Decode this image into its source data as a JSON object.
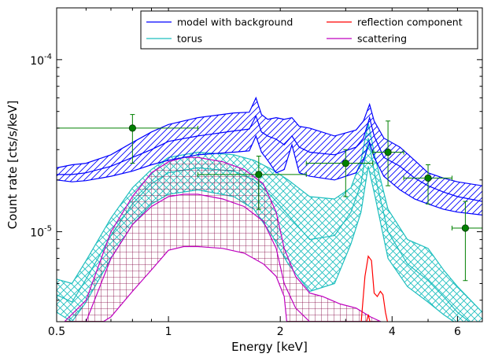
{
  "chart_data": {
    "type": "line",
    "xlabel": "Energy [keV]",
    "ylabel": "Count rate [cts/s/keV]",
    "xscale": "log",
    "yscale": "log",
    "xlim": [
      0.5,
      7.0
    ],
    "ylim": [
      3e-06,
      0.0002
    ],
    "xticks": [
      {
        "value": 0.5,
        "label": "0.5"
      },
      {
        "value": 1,
        "label": "1"
      },
      {
        "value": 2,
        "label": "2"
      },
      {
        "value": 4,
        "label": "4"
      },
      {
        "value": 6,
        "label": "6"
      }
    ],
    "yticks": [
      {
        "value": 1e-05,
        "base": "10",
        "exp": "-5"
      },
      {
        "value": 0.0001,
        "base": "10",
        "exp": "-4"
      }
    ],
    "legend": {
      "placement": "top-right",
      "columns": 2,
      "entries": [
        {
          "label": "model with background",
          "color": "#0000ff"
        },
        {
          "label": "reflection component",
          "color": "#ff0000"
        },
        {
          "label": "torus",
          "color": "#1fbfbf"
        },
        {
          "label": "scattering",
          "color": "#bf00bf"
        }
      ]
    },
    "colors": {
      "model": "#0000ff",
      "torus": "#1fbfbf",
      "reflection": "#ff0000",
      "scattering": "#bf00bf",
      "hatch_dark": "#800040",
      "data": "#008000"
    },
    "series": [
      {
        "name": "model with background",
        "color": "#0000ff",
        "hatch": "diagonal",
        "upper": [
          [
            0.5,
            2.35e-05
          ],
          [
            0.55,
            2.45e-05
          ],
          [
            0.6,
            2.5e-05
          ],
          [
            0.7,
            2.8e-05
          ],
          [
            0.8,
            3.3e-05
          ],
          [
            0.9,
            3.8e-05
          ],
          [
            1.0,
            4.2e-05
          ],
          [
            1.2,
            4.6e-05
          ],
          [
            1.5,
            4.9e-05
          ],
          [
            1.65,
            4.95e-05
          ],
          [
            1.72,
            6e-05
          ],
          [
            1.78,
            4.8e-05
          ],
          [
            1.85,
            4.5e-05
          ],
          [
            1.95,
            4.6e-05
          ],
          [
            2.05,
            4.5e-05
          ],
          [
            2.15,
            4.6e-05
          ],
          [
            2.25,
            4.1e-05
          ],
          [
            2.4,
            4e-05
          ],
          [
            2.8,
            3.6e-05
          ],
          [
            3.2,
            3.9e-05
          ],
          [
            3.35,
            4.4e-05
          ],
          [
            3.48,
            5.5e-05
          ],
          [
            3.58,
            4.4e-05
          ],
          [
            3.8,
            3.5e-05
          ],
          [
            4.2,
            3.1e-05
          ],
          [
            4.6,
            2.6e-05
          ],
          [
            5.0,
            2.2e-05
          ],
          [
            5.5,
            2.05e-05
          ],
          [
            6.0,
            1.95e-05
          ],
          [
            7.0,
            1.85e-05
          ]
        ],
        "middle": [
          [
            0.5,
            2.15e-05
          ],
          [
            0.55,
            2.15e-05
          ],
          [
            0.6,
            2.2e-05
          ],
          [
            0.7,
            2.4e-05
          ],
          [
            0.8,
            2.7e-05
          ],
          [
            0.9,
            3e-05
          ],
          [
            1.0,
            3.35e-05
          ],
          [
            1.2,
            3.6e-05
          ],
          [
            1.5,
            3.85e-05
          ],
          [
            1.65,
            3.95e-05
          ],
          [
            1.72,
            4.7e-05
          ],
          [
            1.78,
            3.8e-05
          ],
          [
            1.85,
            3.6e-05
          ],
          [
            1.95,
            3.45e-05
          ],
          [
            2.05,
            3.2e-05
          ],
          [
            2.15,
            3.6e-05
          ],
          [
            2.25,
            3.1e-05
          ],
          [
            2.4,
            2.9e-05
          ],
          [
            2.8,
            2.8e-05
          ],
          [
            3.2,
            3.1e-05
          ],
          [
            3.35,
            3.5e-05
          ],
          [
            3.48,
            4.6e-05
          ],
          [
            3.58,
            3.6e-05
          ],
          [
            3.8,
            2.7e-05
          ],
          [
            4.2,
            2.4e-05
          ],
          [
            4.6,
            2.05e-05
          ],
          [
            5.0,
            1.85e-05
          ],
          [
            5.5,
            1.7e-05
          ],
          [
            6.0,
            1.6e-05
          ],
          [
            7.0,
            1.5e-05
          ]
        ],
        "lower": [
          [
            0.5,
            2e-05
          ],
          [
            0.55,
            1.95e-05
          ],
          [
            0.6,
            1.98e-05
          ],
          [
            0.7,
            2.1e-05
          ],
          [
            0.8,
            2.25e-05
          ],
          [
            0.9,
            2.45e-05
          ],
          [
            1.0,
            2.6e-05
          ],
          [
            1.2,
            2.8e-05
          ],
          [
            1.5,
            2.9e-05
          ],
          [
            1.65,
            2.95e-05
          ],
          [
            1.72,
            3.6e-05
          ],
          [
            1.78,
            2.9e-05
          ],
          [
            1.85,
            2.6e-05
          ],
          [
            1.95,
            2.2e-05
          ],
          [
            2.05,
            2.3e-05
          ],
          [
            2.15,
            3.2e-05
          ],
          [
            2.25,
            2.2e-05
          ],
          [
            2.4,
            2.1e-05
          ],
          [
            2.8,
            2e-05
          ],
          [
            3.2,
            2.2e-05
          ],
          [
            3.35,
            2.6e-05
          ],
          [
            3.48,
            3.3e-05
          ],
          [
            3.58,
            2.7e-05
          ],
          [
            3.8,
            2.1e-05
          ],
          [
            4.2,
            1.75e-05
          ],
          [
            4.6,
            1.55e-05
          ],
          [
            5.0,
            1.45e-05
          ],
          [
            5.5,
            1.35e-05
          ],
          [
            6.0,
            1.3e-05
          ],
          [
            7.0,
            1.25e-05
          ]
        ]
      },
      {
        "name": "torus",
        "color": "#1fbfbf",
        "hatch": "crosshatch",
        "upper": [
          [
            0.5,
            5.3e-06
          ],
          [
            0.55,
            5e-06
          ],
          [
            0.6,
            6.8e-06
          ],
          [
            0.7,
            1.2e-05
          ],
          [
            0.8,
            1.8e-05
          ],
          [
            0.9,
            2.3e-05
          ],
          [
            1.0,
            2.7e-05
          ],
          [
            1.2,
            2.9e-05
          ],
          [
            1.5,
            2.8e-05
          ],
          [
            1.7,
            2.6e-05
          ],
          [
            1.9,
            2.3e-05
          ],
          [
            2.1,
            2e-05
          ],
          [
            2.4,
            1.6e-05
          ],
          [
            2.8,
            1.55e-05
          ],
          [
            3.1,
            1.8e-05
          ],
          [
            3.3,
            2.6e-05
          ],
          [
            3.45,
            4.3e-05
          ],
          [
            3.6,
            2.7e-05
          ],
          [
            3.9,
            1.35e-05
          ],
          [
            4.4,
            9e-06
          ],
          [
            5.0,
            8e-06
          ],
          [
            5.5,
            6e-06
          ],
          [
            6.0,
            4.8e-06
          ],
          [
            7.0,
            3.4e-06
          ]
        ],
        "middle": [
          [
            0.5,
            4.3e-06
          ],
          [
            0.55,
            3.9e-06
          ],
          [
            0.6,
            5.3e-06
          ],
          [
            0.7,
            9.5e-06
          ],
          [
            0.8,
            1.45e-05
          ],
          [
            0.9,
            1.9e-05
          ],
          [
            1.0,
            2.2e-05
          ],
          [
            1.2,
            2.35e-05
          ],
          [
            1.5,
            2.25e-05
          ],
          [
            1.7,
            2e-05
          ],
          [
            1.9,
            1.6e-05
          ],
          [
            2.1,
            1.25e-05
          ],
          [
            2.4,
            9e-06
          ],
          [
            2.8,
            9.5e-06
          ],
          [
            3.1,
            1.3e-05
          ],
          [
            3.3,
            1.9e-05
          ],
          [
            3.45,
            3.5e-05
          ],
          [
            3.6,
            2.1e-05
          ],
          [
            3.9,
            1e-05
          ],
          [
            4.4,
            6.5e-06
          ],
          [
            5.0,
            5.2e-06
          ],
          [
            5.5,
            4.2e-06
          ],
          [
            6.0,
            3.4e-06
          ],
          [
            7.0,
            2.6e-06
          ]
        ],
        "lower": [
          [
            0.5,
            3.4e-06
          ],
          [
            0.55,
            3e-06
          ],
          [
            0.6,
            3.9e-06
          ],
          [
            0.7,
            7e-06
          ],
          [
            0.8,
            1.1e-05
          ],
          [
            0.9,
            1.45e-05
          ],
          [
            1.0,
            1.65e-05
          ],
          [
            1.2,
            1.75e-05
          ],
          [
            1.5,
            1.6e-05
          ],
          [
            1.7,
            1.35e-05
          ],
          [
            1.9,
            9.5e-06
          ],
          [
            2.1,
            6.5e-06
          ],
          [
            2.4,
            4.5e-06
          ],
          [
            2.8,
            5e-06
          ],
          [
            3.1,
            8.5e-06
          ],
          [
            3.3,
            1.3e-05
          ],
          [
            3.45,
            2.4e-05
          ],
          [
            3.6,
            1.6e-05
          ],
          [
            3.9,
            7e-06
          ],
          [
            4.4,
            4.8e-06
          ],
          [
            5.0,
            3.9e-06
          ],
          [
            5.5,
            3.3e-06
          ],
          [
            6.0,
            2.9e-06
          ],
          [
            7.0,
            2.2e-06
          ]
        ]
      },
      {
        "name": "scattering",
        "color": "#bf00bf",
        "hatch": "grid",
        "upper": [
          [
            0.5,
            2.7e-06
          ],
          [
            0.6,
            4e-06
          ],
          [
            0.7,
            1e-05
          ],
          [
            0.8,
            1.6e-05
          ],
          [
            0.9,
            2.2e-05
          ],
          [
            1.0,
            2.55e-05
          ],
          [
            1.1,
            2.7e-05
          ],
          [
            1.2,
            2.7e-05
          ],
          [
            1.4,
            2.55e-05
          ],
          [
            1.6,
            2.3e-05
          ],
          [
            1.8,
            1.9e-05
          ],
          [
            1.95,
            1.3e-05
          ],
          [
            2.05,
            8e-06
          ],
          [
            2.2,
            5.5e-06
          ],
          [
            2.4,
            4.4e-06
          ],
          [
            2.6,
            4.2e-06
          ],
          [
            2.9,
            3.8e-06
          ],
          [
            3.2,
            3.6e-06
          ],
          [
            3.5,
            3.2e-06
          ],
          [
            4.0,
            2.8e-06
          ]
        ],
        "middle": [
          [
            0.5,
            2.5e-06
          ],
          [
            0.6,
            3e-06
          ],
          [
            0.7,
            7e-06
          ],
          [
            0.8,
            1.1e-05
          ],
          [
            0.9,
            1.4e-05
          ],
          [
            1.0,
            1.6e-05
          ],
          [
            1.1,
            1.65e-05
          ],
          [
            1.2,
            1.65e-05
          ],
          [
            1.4,
            1.55e-05
          ],
          [
            1.6,
            1.4e-05
          ],
          [
            1.8,
            1.15e-05
          ],
          [
            1.95,
            8e-06
          ],
          [
            2.05,
            5e-06
          ],
          [
            2.2,
            3.6e-06
          ],
          [
            2.4,
            3e-06
          ],
          [
            2.6,
            2.8e-06
          ]
        ],
        "lower": [
          [
            0.5,
            2.5e-06
          ],
          [
            0.6,
            2.6e-06
          ],
          [
            0.7,
            3.2e-06
          ],
          [
            0.8,
            4.5e-06
          ],
          [
            0.9,
            6e-06
          ],
          [
            1.0,
            7.8e-06
          ],
          [
            1.1,
            8.2e-06
          ],
          [
            1.2,
            8.2e-06
          ],
          [
            1.4,
            8e-06
          ],
          [
            1.6,
            7.5e-06
          ],
          [
            1.8,
            6.5e-06
          ],
          [
            1.95,
            5.5e-06
          ],
          [
            2.05,
            4.2e-06
          ],
          [
            2.1,
            2.5e-06
          ]
        ]
      },
      {
        "name": "reflection component",
        "color": "#ff0000",
        "upper": [
          [
            3.3,
            2.9e-06
          ],
          [
            3.38,
            5.5e-06
          ],
          [
            3.45,
            7.2e-06
          ],
          [
            3.52,
            6.8e-06
          ],
          [
            3.58,
            4.4e-06
          ],
          [
            3.65,
            4.2e-06
          ],
          [
            3.72,
            4.5e-06
          ],
          [
            3.78,
            4.3e-06
          ],
          [
            3.84,
            3.4e-06
          ],
          [
            3.9,
            2.9e-06
          ]
        ],
        "lower": [
          [
            3.4,
            2.9e-06
          ],
          [
            3.45,
            3.3e-06
          ],
          [
            3.5,
            2.9e-06
          ]
        ]
      }
    ],
    "data_points": [
      {
        "x": 0.8,
        "y": 4e-05,
        "xerr": [
          0.5,
          1.2
        ],
        "yerr": [
          2.5e-05,
          4.8e-05
        ]
      },
      {
        "x": 1.75,
        "y": 2.15e-05,
        "xerr": [
          1.2,
          2.35
        ],
        "yerr": [
          1.35e-05,
          2.75e-05
        ]
      },
      {
        "x": 3.0,
        "y": 2.5e-05,
        "xerr": [
          2.35,
          3.55
        ],
        "yerr": [
          1.6e-05,
          3e-05
        ]
      },
      {
        "x": 3.9,
        "y": 2.9e-05,
        "xerr": [
          3.55,
          4.3
        ],
        "yerr": [
          1.85e-05,
          4.4e-05
        ]
      },
      {
        "x": 5.0,
        "y": 2.05e-05,
        "xerr": [
          4.3,
          5.8
        ],
        "yerr": [
          1.45e-05,
          2.45e-05
        ]
      },
      {
        "x": 6.3,
        "y": 1.05e-05,
        "xerr": [
          5.8,
          7.0
        ],
        "yerr": [
          5.2e-06,
          1.5e-05
        ]
      }
    ]
  }
}
